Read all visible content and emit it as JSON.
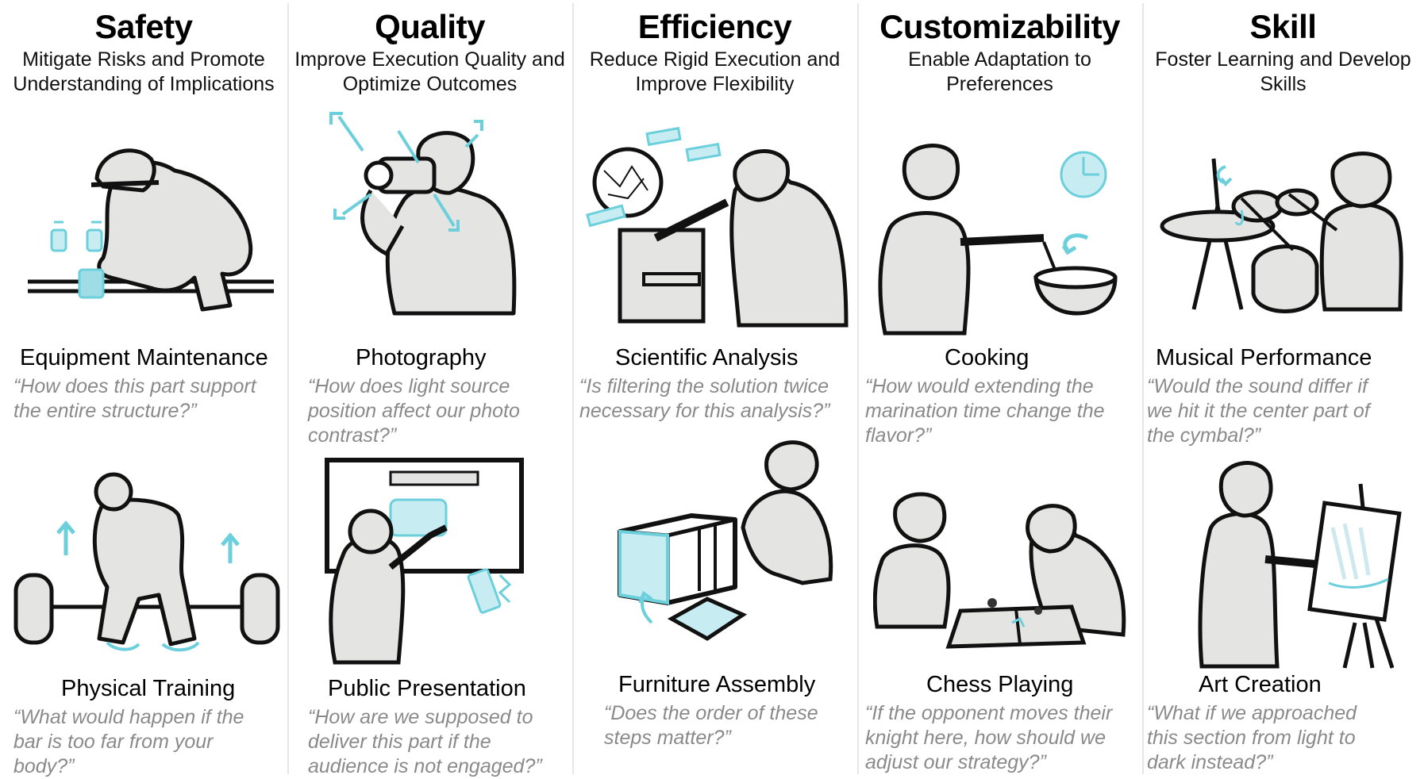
{
  "accent_color": "#6ccfdc",
  "figure_fill": "#e4e4e2",
  "columns": [
    {
      "title": "Safety",
      "subtitle_lines": [
        "Mitigate Risks and Promote",
        "Understanding of Implications"
      ],
      "examples": [
        {
          "task": "Equipment Maintenance",
          "quote_lines": [
            "“How does this part support",
            "the entire structure?”"
          ],
          "icon": "worker-pipe-maintenance"
        },
        {
          "task": "Physical Training",
          "quote_lines": [
            "“What would happen if the",
            "bar is too far from your",
            "body?”"
          ],
          "icon": "barbell-lift"
        }
      ]
    },
    {
      "title": "Quality",
      "subtitle_lines": [
        "Improve Execution Quality and",
        "Optimize Outcomes"
      ],
      "examples": [
        {
          "task": "Photography",
          "quote_lines": [
            "“How does light source",
            "position affect our photo",
            "contrast?”"
          ],
          "icon": "camera-photographer"
        },
        {
          "task": "Public Presentation",
          "quote_lines": [
            "“How are we supposed to",
            "deliver this part if the",
            "audience is not engaged?”"
          ],
          "icon": "presenter-board"
        }
      ]
    },
    {
      "title": "Efficiency",
      "subtitle_lines": [
        "Reduce Rigid Execution and",
        "Improve Flexibility"
      ],
      "examples": [
        {
          "task": "Scientific Analysis",
          "quote_lines": [
            "“Is filtering the solution twice",
            "necessary for this analysis?”"
          ],
          "icon": "microscope-scientist"
        },
        {
          "task": "Furniture Assembly",
          "quote_lines": [
            "“Does the order of these",
            "steps matter?”"
          ],
          "icon": "furniture-assembly"
        }
      ]
    },
    {
      "title": "Customizability",
      "subtitle_lines": [
        "Enable Adaptation to",
        "Preferences"
      ],
      "examples": [
        {
          "task": "Cooking",
          "quote_lines": [
            "“How would extending the",
            "marination time change the",
            "flavor?”"
          ],
          "icon": "cooking-bowl-timer"
        },
        {
          "task": "Chess Playing",
          "quote_lines": [
            "“If the opponent moves their",
            "knight here, how should we",
            "adjust our strategy?”"
          ],
          "icon": "chess-players"
        }
      ]
    },
    {
      "title": "Skill",
      "subtitle_lines": [
        "Foster Learning and Develop",
        "Skills"
      ],
      "examples": [
        {
          "task": "Musical Performance",
          "quote_lines": [
            "“Would the sound differ if",
            "we hit it the center part of",
            "the cymbal?”"
          ],
          "icon": "drummer-cymbal"
        },
        {
          "task": "Art Creation",
          "quote_lines": [
            "“What if we approached",
            "this section from light to",
            "dark instead?”"
          ],
          "icon": "painter-easel"
        }
      ]
    }
  ]
}
